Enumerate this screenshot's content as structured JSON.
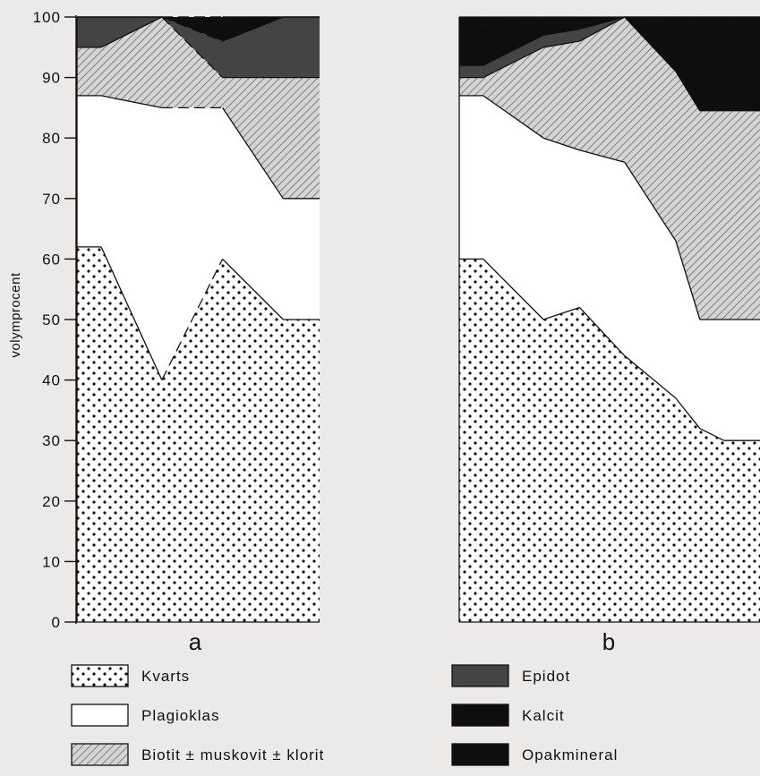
{
  "chart_data": {
    "type": "area",
    "ylabel": "volymprocent",
    "ylim": [
      0,
      100
    ],
    "yticks": [
      "0",
      "10",
      "20",
      "30",
      "40",
      "50",
      "60",
      "70",
      "80",
      "90",
      "100"
    ],
    "layers": [
      {
        "name": "Kvarts",
        "pattern": "dots",
        "color": "#ffffff"
      },
      {
        "name": "Plagioklas",
        "pattern": "solid",
        "color": "#ffffff"
      },
      {
        "name": "Biotit ± muskovit ± klorit",
        "pattern": "hatch",
        "color": "#bdbdbd"
      },
      {
        "name": "Epidot",
        "pattern": "solid",
        "color": "#444444"
      },
      {
        "name": "Kalcit",
        "pattern": "solid",
        "color": "#0e0e0e"
      },
      {
        "name": "Opakmineral",
        "pattern": "solid",
        "color": "#0e0e0e"
      }
    ],
    "panels": [
      {
        "label": "a",
        "x": [
          0,
          0.1,
          0.35,
          0.6,
          0.85,
          1.0
        ],
        "boundaries": [
          [
            62,
            62,
            40,
            60,
            50,
            50
          ],
          [
            87,
            87,
            85,
            85,
            70,
            70
          ],
          [
            95,
            95,
            100,
            90,
            90,
            90
          ],
          [
            100,
            100,
            100,
            96,
            100,
            100
          ],
          [
            100,
            100,
            100,
            100,
            100,
            100
          ],
          [
            100,
            100,
            100,
            100,
            100,
            100
          ]
        ],
        "dashed_segments": [
          [
            2,
            3
          ]
        ]
      },
      {
        "label": "b",
        "x": [
          0,
          0.08,
          0.28,
          0.4,
          0.55,
          0.72,
          0.8,
          0.88,
          1.0
        ],
        "boundaries": [
          [
            60,
            60,
            50,
            52,
            44,
            37,
            32,
            30,
            30
          ],
          [
            87,
            87,
            80,
            78,
            76,
            63,
            50,
            50,
            50
          ],
          [
            90,
            90,
            95,
            96,
            100,
            100,
            100,
            100,
            100
          ],
          [
            92,
            92,
            97,
            98,
            100,
            100,
            100,
            100,
            100
          ],
          [
            98.5,
            98.5,
            99,
            99,
            100,
            91,
            84.5,
            84.5,
            84.5
          ],
          [
            100,
            100,
            100,
            100,
            100,
            99,
            99,
            99,
            99
          ]
        ],
        "dashed_segments": []
      }
    ]
  }
}
